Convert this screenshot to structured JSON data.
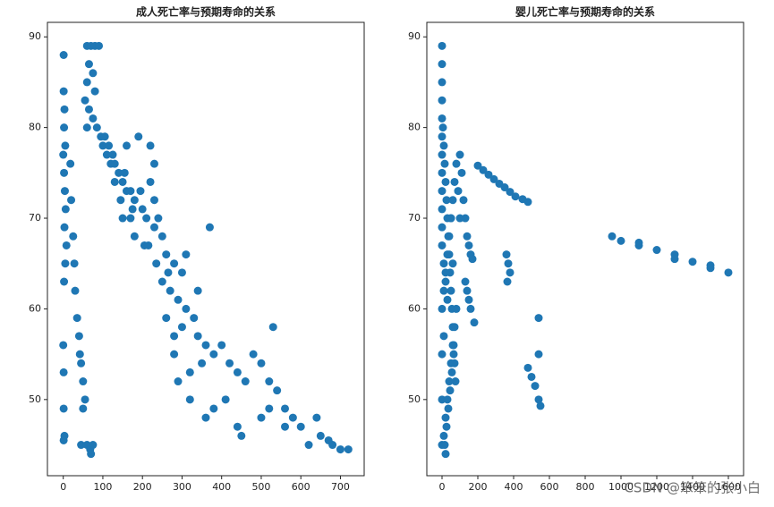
{
  "chart_data": [
    {
      "type": "scatter",
      "title": "成人死亡率与预期寿命的关系",
      "color": "#1f77b4",
      "xlim": [
        -40,
        760
      ],
      "ylim": [
        41.6,
        91.6
      ],
      "xticks": [
        0,
        100,
        200,
        300,
        400,
        500,
        600,
        700
      ],
      "yticks": [
        50,
        60,
        70,
        80,
        90
      ],
      "x": [
        1,
        1,
        3,
        2,
        5,
        0,
        2,
        4,
        6,
        3,
        8,
        5,
        2,
        0,
        1,
        1,
        3,
        1,
        18,
        20,
        25,
        28,
        30,
        35,
        40,
        42,
        45,
        50,
        55,
        50,
        45,
        60,
        68,
        70,
        75,
        60,
        70,
        80,
        90,
        65,
        75,
        60,
        80,
        55,
        65,
        75,
        85,
        60,
        95,
        100,
        110,
        120,
        130,
        140,
        150,
        160,
        170,
        180,
        160,
        190,
        220,
        230,
        220,
        200,
        210,
        230,
        250,
        180,
        170,
        150,
        260,
        280,
        300,
        250,
        270,
        290,
        310,
        330,
        300,
        280,
        260,
        340,
        360,
        380,
        350,
        320,
        400,
        420,
        440,
        460,
        410,
        380,
        360,
        440,
        450,
        480,
        500,
        520,
        530,
        540,
        560,
        580,
        600,
        620,
        640,
        650,
        670,
        680,
        700,
        720,
        370,
        205,
        230,
        310,
        340,
        290,
        280,
        320,
        500,
        520,
        560,
        130,
        145,
        175,
        195,
        240,
        215,
        265,
        235,
        155,
        125,
        115,
        105
      ],
      "values": [
        88,
        84,
        82,
        80,
        78,
        77,
        75,
        73,
        71,
        69,
        67,
        65,
        63,
        56,
        53,
        49,
        46,
        45.5,
        76,
        72,
        68,
        65,
        62,
        59,
        57,
        55,
        54,
        52,
        50,
        49,
        45,
        45,
        44.5,
        44,
        45,
        89,
        89,
        89,
        89,
        87,
        86,
        85,
        84,
        83,
        82,
        81,
        80,
        80,
        79,
        78,
        77,
        76,
        76,
        75,
        74,
        73,
        73,
        72,
        78,
        79,
        78,
        76,
        74,
        71,
        70,
        69,
        68,
        68,
        70,
        70,
        66,
        65,
        64,
        63,
        62,
        61,
        60,
        59,
        58,
        57,
        59,
        57,
        56,
        55,
        54,
        53,
        56,
        54,
        53,
        52,
        50,
        49,
        48,
        47,
        46,
        55,
        54,
        52,
        58,
        51,
        49,
        48,
        47,
        45,
        48,
        46,
        45.5,
        45,
        44.5,
        44.5,
        69,
        67,
        72,
        66,
        62,
        52,
        55,
        50,
        48,
        49,
        47,
        74,
        72,
        71,
        73,
        70,
        67,
        64,
        65,
        75,
        77,
        78,
        79
      ]
    },
    {
      "type": "scatter",
      "title": "婴儿死亡率与预期寿命的关系",
      "color": "#1f77b4",
      "xlim": [
        -85,
        1685
      ],
      "ylim": [
        41.6,
        91.6
      ],
      "xticks": [
        0,
        200,
        400,
        600,
        800,
        1000,
        1200,
        1400,
        1600
      ],
      "yticks": [
        50,
        60,
        70,
        80,
        90
      ],
      "x": [
        0,
        0,
        0,
        0,
        0,
        0,
        0,
        0,
        0,
        0,
        0,
        0,
        0,
        0,
        0,
        0,
        5,
        10,
        15,
        20,
        25,
        30,
        35,
        40,
        45,
        50,
        55,
        60,
        65,
        70,
        75,
        10,
        20,
        30,
        40,
        50,
        60,
        70,
        80,
        10,
        20,
        30,
        40,
        50,
        60,
        70,
        15,
        25,
        35,
        45,
        55,
        65,
        10,
        20,
        30,
        10,
        20,
        100,
        110,
        120,
        130,
        140,
        150,
        160,
        170,
        130,
        140,
        150,
        160,
        180,
        200,
        230,
        260,
        290,
        320,
        350,
        380,
        410,
        450,
        480,
        360,
        370,
        380,
        365,
        540,
        540,
        480,
        500,
        520,
        540,
        550,
        950,
        1000,
        1100,
        1100,
        1200,
        1300,
        1300,
        1400,
        1500,
        1500,
        1600,
        80,
        90,
        100,
        50,
        60
      ],
      "values": [
        89,
        87,
        85,
        83,
        81,
        79,
        77,
        75,
        73,
        71,
        69,
        67,
        60,
        55,
        50,
        45,
        80,
        78,
        76,
        74,
        72,
        70,
        68,
        66,
        64,
        62,
        60,
        58,
        56,
        54,
        52,
        46,
        48,
        50,
        52,
        54,
        56,
        58,
        60,
        62,
        64,
        66,
        68,
        70,
        72,
        74,
        45,
        47,
        49,
        51,
        53,
        55,
        65,
        63,
        61,
        57,
        44,
        77,
        75,
        72,
        70,
        68,
        67,
        66,
        65.5,
        63,
        62,
        61,
        60,
        58.5,
        75.8,
        75.3,
        74.8,
        74.3,
        73.8,
        73.4,
        72.9,
        72.4,
        72.1,
        71.8,
        66,
        65,
        64,
        63,
        59,
        55,
        53.5,
        52.5,
        51.5,
        50,
        49.3,
        68,
        67.5,
        67,
        67.3,
        66.5,
        66,
        65.5,
        65.2,
        64.8,
        64.5,
        64,
        76,
        73,
        70,
        70,
        65
      ]
    }
  ],
  "watermark": "CSDN @笨笨的张小白"
}
